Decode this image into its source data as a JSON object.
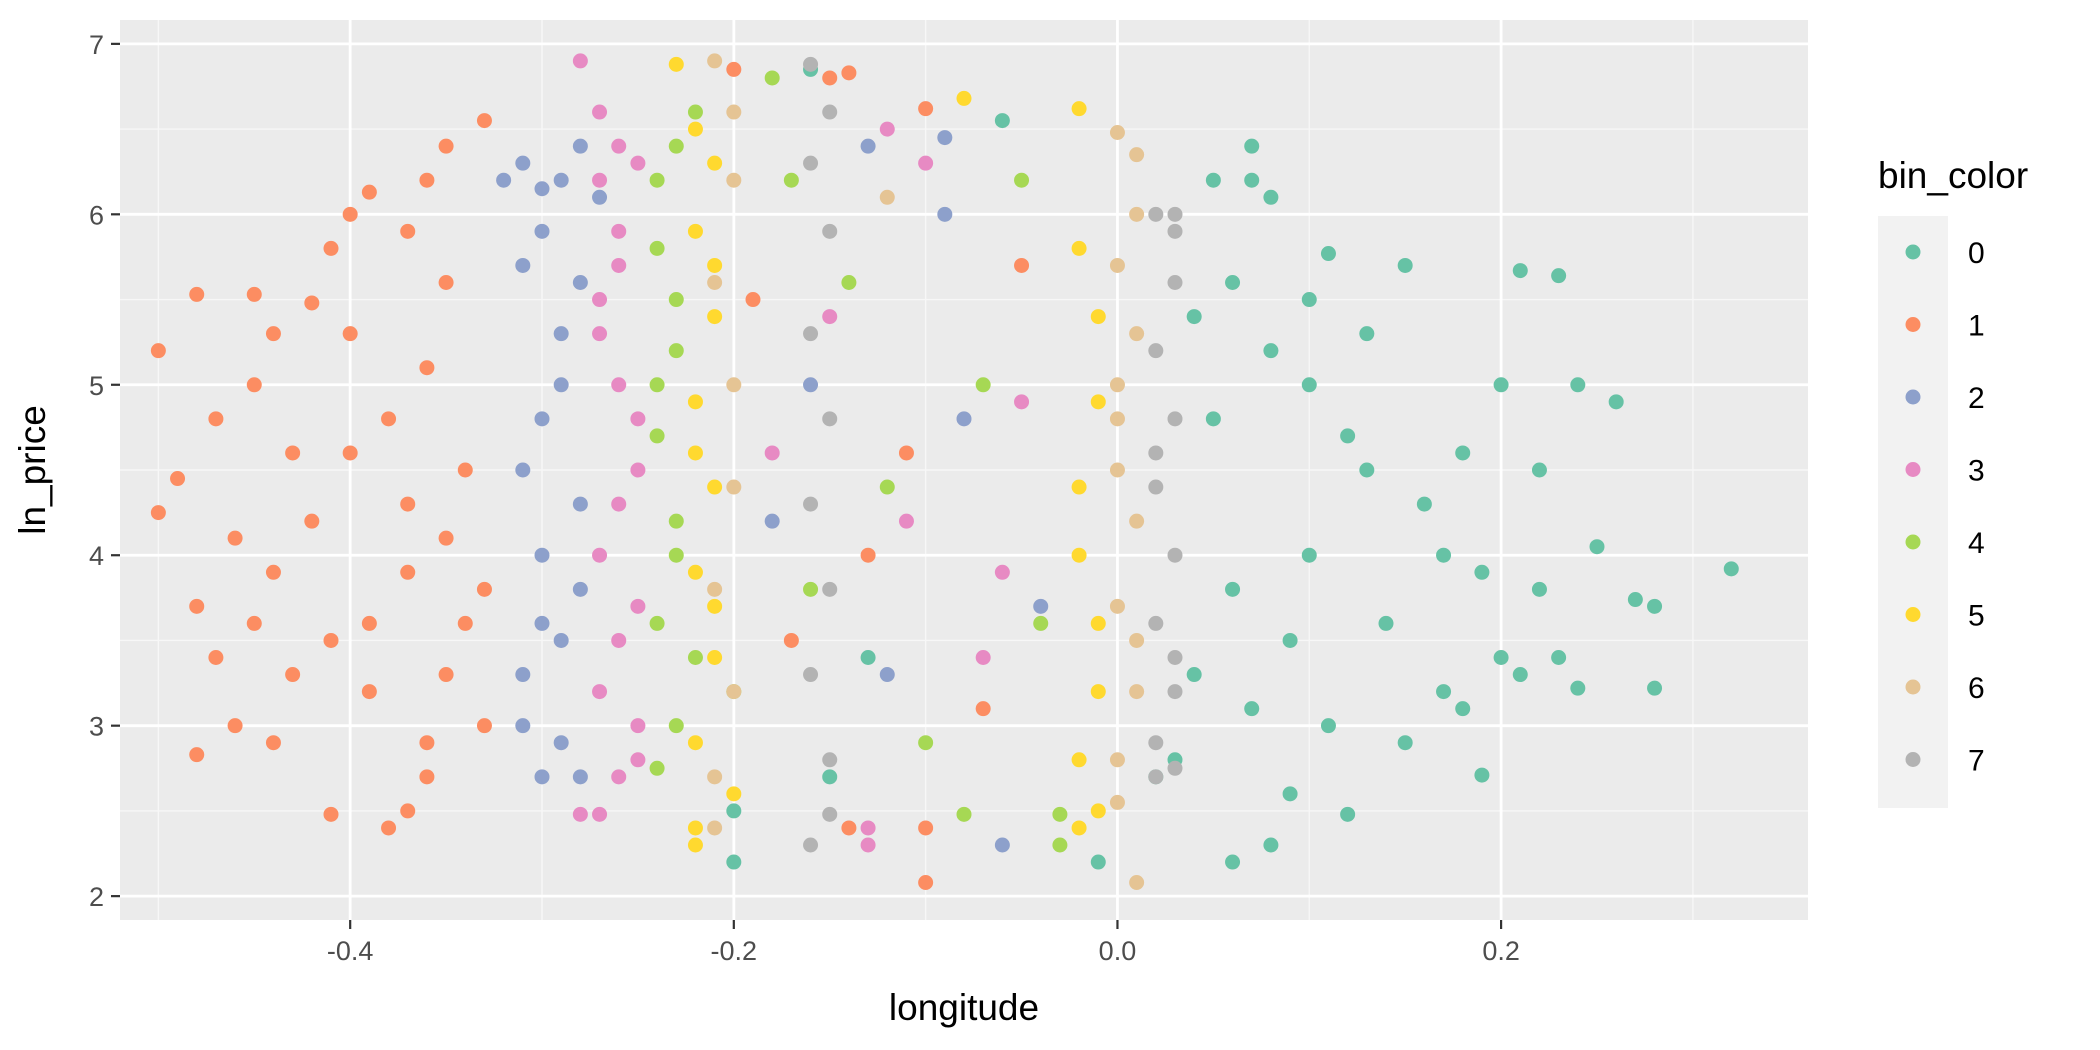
{
  "chart_data": {
    "type": "scatter",
    "xlabel": "longitude",
    "ylabel": "ln_price",
    "xlim": [
      -0.52,
      0.36
    ],
    "ylim": [
      1.86,
      7.14
    ],
    "x_ticks": [
      -0.4,
      -0.2,
      0.0,
      0.2
    ],
    "x_tick_labels": [
      "-0.4",
      "-0.2",
      "0.0",
      "0.2"
    ],
    "y_ticks": [
      2,
      3,
      4,
      5,
      6,
      7
    ],
    "y_tick_labels": [
      "2",
      "3",
      "4",
      "5",
      "6",
      "7"
    ],
    "grid": true,
    "legend": {
      "title": "bin_color",
      "position": "right",
      "entries": [
        {
          "label": "0",
          "color": "#66C2A5"
        },
        {
          "label": "1",
          "color": "#FC8D62"
        },
        {
          "label": "2",
          "color": "#8DA0CB"
        },
        {
          "label": "3",
          "color": "#E78AC3"
        },
        {
          "label": "4",
          "color": "#A6D854"
        },
        {
          "label": "5",
          "color": "#FFD92F"
        },
        {
          "label": "6",
          "color": "#E5C494"
        },
        {
          "label": "7",
          "color": "#B3B3B3"
        }
      ]
    },
    "series": [
      {
        "name": "0",
        "color": "#66C2A5",
        "points": [
          [
            0.05,
            6.2
          ],
          [
            0.07,
            6.4
          ],
          [
            0.07,
            6.2
          ],
          [
            0.08,
            6.1
          ],
          [
            0.11,
            5.77
          ],
          [
            0.15,
            5.7
          ],
          [
            0.21,
            5.67
          ],
          [
            0.23,
            5.64
          ],
          [
            0.26,
            4.9
          ],
          [
            0.24,
            5.0
          ],
          [
            0.25,
            4.05
          ],
          [
            0.32,
            3.92
          ],
          [
            0.27,
            3.74
          ],
          [
            0.28,
            3.7
          ],
          [
            0.28,
            3.22
          ],
          [
            0.24,
            3.22
          ],
          [
            0.19,
            2.71
          ],
          [
            0.12,
            2.48
          ],
          [
            0.08,
            2.3
          ],
          [
            0.06,
            2.2
          ],
          [
            0.17,
            3.2
          ],
          [
            0.2,
            3.4
          ],
          [
            0.22,
            3.8
          ],
          [
            0.18,
            4.6
          ],
          [
            0.16,
            4.3
          ],
          [
            0.13,
            4.5
          ],
          [
            0.1,
            4.0
          ],
          [
            0.09,
            3.5
          ],
          [
            0.14,
            3.6
          ],
          [
            0.19,
            3.9
          ],
          [
            0.21,
            3.3
          ],
          [
            0.23,
            3.4
          ],
          [
            0.15,
            2.9
          ],
          [
            0.11,
            3.0
          ],
          [
            0.06,
            3.8
          ],
          [
            0.05,
            4.8
          ],
          [
            0.08,
            5.2
          ],
          [
            0.1,
            5.0
          ],
          [
            0.12,
            4.7
          ],
          [
            0.2,
            5.0
          ],
          [
            0.22,
            4.5
          ],
          [
            0.17,
            4.0
          ],
          [
            0.04,
            3.3
          ],
          [
            0.07,
            3.1
          ],
          [
            0.09,
            2.6
          ],
          [
            0.1,
            5.5
          ],
          [
            0.13,
            5.3
          ],
          [
            0.06,
            5.6
          ],
          [
            0.04,
            5.4
          ],
          [
            0.18,
            3.1
          ],
          [
            0.02,
            2.7
          ],
          [
            0.03,
            2.8
          ],
          [
            -0.01,
            2.2
          ],
          [
            -0.2,
            2.5
          ],
          [
            -0.2,
            2.2
          ],
          [
            -0.15,
            2.7
          ],
          [
            -0.06,
            6.55
          ],
          [
            -0.16,
            6.85
          ],
          [
            -0.13,
            3.4
          ]
        ]
      },
      {
        "name": "1",
        "color": "#FC8D62",
        "points": [
          [
            -0.5,
            5.2
          ],
          [
            -0.48,
            5.53
          ],
          [
            -0.45,
            5.53
          ],
          [
            -0.42,
            5.48
          ],
          [
            -0.44,
            5.3
          ],
          [
            -0.4,
            5.3
          ],
          [
            -0.41,
            5.8
          ],
          [
            -0.4,
            6.0
          ],
          [
            -0.39,
            6.13
          ],
          [
            -0.37,
            5.9
          ],
          [
            -0.36,
            6.2
          ],
          [
            -0.35,
            6.4
          ],
          [
            -0.33,
            6.55
          ],
          [
            -0.49,
            4.45
          ],
          [
            -0.5,
            4.25
          ],
          [
            -0.48,
            3.7
          ],
          [
            -0.47,
            3.4
          ],
          [
            -0.46,
            3.0
          ],
          [
            -0.48,
            2.83
          ],
          [
            -0.44,
            2.9
          ],
          [
            -0.41,
            2.48
          ],
          [
            -0.38,
            2.4
          ],
          [
            -0.37,
            2.5
          ],
          [
            -0.36,
            2.7
          ],
          [
            -0.47,
            4.8
          ],
          [
            -0.45,
            5.0
          ],
          [
            -0.43,
            4.6
          ],
          [
            -0.42,
            4.2
          ],
          [
            -0.44,
            3.9
          ],
          [
            -0.46,
            4.1
          ],
          [
            -0.41,
            3.5
          ],
          [
            -0.39,
            3.2
          ],
          [
            -0.38,
            4.8
          ],
          [
            -0.36,
            5.1
          ],
          [
            -0.35,
            5.6
          ],
          [
            -0.34,
            4.5
          ],
          [
            -0.33,
            3.8
          ],
          [
            -0.35,
            3.3
          ],
          [
            -0.33,
            3.0
          ],
          [
            -0.37,
            4.3
          ],
          [
            -0.4,
            4.6
          ],
          [
            -0.45,
            3.6
          ],
          [
            -0.43,
            3.3
          ],
          [
            -0.39,
            3.6
          ],
          [
            -0.37,
            3.9
          ],
          [
            -0.35,
            4.1
          ],
          [
            -0.34,
            3.6
          ],
          [
            -0.36,
            2.9
          ],
          [
            -0.2,
            6.85
          ],
          [
            -0.15,
            6.8
          ],
          [
            -0.14,
            6.83
          ],
          [
            -0.1,
            6.62
          ],
          [
            -0.1,
            2.08
          ],
          [
            -0.1,
            2.4
          ],
          [
            -0.14,
            2.4
          ],
          [
            -0.17,
            3.5
          ],
          [
            -0.13,
            4.0
          ],
          [
            -0.19,
            5.5
          ],
          [
            -0.11,
            4.6
          ],
          [
            -0.07,
            3.1
          ],
          [
            -0.05,
            5.7
          ]
        ]
      },
      {
        "name": "2",
        "color": "#8DA0CB",
        "points": [
          [
            -0.32,
            6.2
          ],
          [
            -0.31,
            6.3
          ],
          [
            -0.3,
            6.15
          ],
          [
            -0.29,
            6.2
          ],
          [
            -0.28,
            6.4
          ],
          [
            -0.27,
            6.1
          ],
          [
            -0.3,
            5.9
          ],
          [
            -0.28,
            5.6
          ],
          [
            -0.29,
            5.0
          ],
          [
            -0.31,
            4.5
          ],
          [
            -0.3,
            4.0
          ],
          [
            -0.29,
            3.5
          ],
          [
            -0.31,
            3.0
          ],
          [
            -0.3,
            2.7
          ],
          [
            -0.28,
            2.7
          ],
          [
            -0.31,
            3.3
          ],
          [
            -0.28,
            3.8
          ],
          [
            -0.3,
            4.8
          ],
          [
            -0.29,
            5.3
          ],
          [
            -0.31,
            5.7
          ],
          [
            -0.28,
            4.3
          ],
          [
            -0.3,
            3.6
          ],
          [
            -0.29,
            2.9
          ],
          [
            -0.06,
            2.3
          ],
          [
            -0.13,
            6.4
          ],
          [
            -0.09,
            6.45
          ],
          [
            -0.16,
            5.0
          ],
          [
            -0.12,
            3.3
          ],
          [
            -0.18,
            4.2
          ],
          [
            -0.08,
            4.8
          ],
          [
            -0.04,
            3.7
          ],
          [
            -0.09,
            6.0
          ]
        ]
      },
      {
        "name": "3",
        "color": "#E78AC3",
        "points": [
          [
            -0.28,
            6.9
          ],
          [
            -0.27,
            6.6
          ],
          [
            -0.26,
            6.4
          ],
          [
            -0.27,
            6.2
          ],
          [
            -0.26,
            5.9
          ],
          [
            -0.25,
            6.3
          ],
          [
            -0.27,
            5.5
          ],
          [
            -0.26,
            5.0
          ],
          [
            -0.25,
            4.5
          ],
          [
            -0.27,
            4.0
          ],
          [
            -0.26,
            3.5
          ],
          [
            -0.25,
            3.0
          ],
          [
            -0.27,
            2.48
          ],
          [
            -0.28,
            2.48
          ],
          [
            -0.25,
            2.8
          ],
          [
            -0.27,
            3.2
          ],
          [
            -0.26,
            4.3
          ],
          [
            -0.25,
            4.8
          ],
          [
            -0.27,
            5.3
          ],
          [
            -0.26,
            5.7
          ],
          [
            -0.25,
            3.7
          ],
          [
            -0.26,
            2.7
          ],
          [
            -0.13,
            2.4
          ],
          [
            -0.13,
            2.3
          ],
          [
            -0.12,
            6.5
          ],
          [
            -0.1,
            6.3
          ],
          [
            -0.15,
            5.4
          ],
          [
            -0.07,
            3.4
          ],
          [
            -0.05,
            4.9
          ],
          [
            -0.06,
            3.9
          ],
          [
            -0.18,
            4.6
          ],
          [
            -0.11,
            4.2
          ]
        ]
      },
      {
        "name": "4",
        "color": "#A6D854",
        "points": [
          [
            -0.23,
            6.4
          ],
          [
            -0.24,
            6.2
          ],
          [
            -0.22,
            6.6
          ],
          [
            -0.24,
            5.8
          ],
          [
            -0.23,
            5.2
          ],
          [
            -0.24,
            4.7
          ],
          [
            -0.23,
            4.2
          ],
          [
            -0.24,
            3.6
          ],
          [
            -0.23,
            3.0
          ],
          [
            -0.24,
            2.75
          ],
          [
            -0.22,
            3.4
          ],
          [
            -0.23,
            4.0
          ],
          [
            -0.24,
            5.0
          ],
          [
            -0.23,
            5.5
          ],
          [
            -0.17,
            6.2
          ],
          [
            -0.18,
            6.8
          ],
          [
            -0.08,
            2.48
          ],
          [
            -0.03,
            2.48
          ],
          [
            -0.03,
            2.3
          ],
          [
            -0.05,
            6.2
          ],
          [
            -0.16,
            3.8
          ],
          [
            -0.12,
            4.4
          ],
          [
            -0.07,
            5.0
          ],
          [
            -0.04,
            3.6
          ],
          [
            -0.2,
            3.2
          ],
          [
            -0.14,
            5.6
          ],
          [
            -0.1,
            2.9
          ]
        ]
      },
      {
        "name": "5",
        "color": "#FFD92F",
        "points": [
          [
            -0.23,
            6.88
          ],
          [
            -0.22,
            6.5
          ],
          [
            -0.21,
            6.3
          ],
          [
            -0.22,
            5.9
          ],
          [
            -0.21,
            5.4
          ],
          [
            -0.22,
            4.9
          ],
          [
            -0.21,
            4.4
          ],
          [
            -0.22,
            3.9
          ],
          [
            -0.21,
            3.4
          ],
          [
            -0.22,
            2.9
          ],
          [
            -0.22,
            2.4
          ],
          [
            -0.22,
            2.3
          ],
          [
            -0.2,
            2.6
          ],
          [
            -0.21,
            3.7
          ],
          [
            -0.22,
            4.6
          ],
          [
            -0.21,
            5.7
          ],
          [
            -0.02,
            6.62
          ],
          [
            -0.02,
            2.4
          ],
          [
            -0.01,
            2.5
          ],
          [
            -0.08,
            6.68
          ],
          [
            -0.02,
            5.8
          ],
          [
            -0.01,
            4.9
          ],
          [
            -0.02,
            4.0
          ],
          [
            -0.01,
            3.2
          ],
          [
            -0.02,
            2.8
          ],
          [
            -0.01,
            5.4
          ],
          [
            -0.02,
            4.4
          ],
          [
            -0.01,
            3.6
          ]
        ]
      },
      {
        "name": "6",
        "color": "#E5C494",
        "points": [
          [
            -0.21,
            6.9
          ],
          [
            -0.2,
            6.6
          ],
          [
            -0.2,
            6.2
          ],
          [
            -0.21,
            5.6
          ],
          [
            -0.2,
            5.0
          ],
          [
            -0.2,
            4.4
          ],
          [
            -0.21,
            3.8
          ],
          [
            -0.2,
            3.2
          ],
          [
            -0.21,
            2.7
          ],
          [
            -0.21,
            2.4
          ],
          [
            0.0,
            6.48
          ],
          [
            0.01,
            6.35
          ],
          [
            0.01,
            6.0
          ],
          [
            0.0,
            5.7
          ],
          [
            0.01,
            5.3
          ],
          [
            0.0,
            4.8
          ],
          [
            0.01,
            4.2
          ],
          [
            0.0,
            3.7
          ],
          [
            0.01,
            3.2
          ],
          [
            0.0,
            2.8
          ],
          [
            0.0,
            2.55
          ],
          [
            0.01,
            2.08
          ],
          [
            0.0,
            4.5
          ],
          [
            0.01,
            3.5
          ],
          [
            0.0,
            5.0
          ],
          [
            -0.12,
            6.1
          ]
        ]
      },
      {
        "name": "7",
        "color": "#B3B3B3",
        "points": [
          [
            -0.16,
            6.88
          ],
          [
            -0.15,
            6.6
          ],
          [
            -0.16,
            6.3
          ],
          [
            -0.15,
            5.9
          ],
          [
            -0.16,
            5.3
          ],
          [
            -0.15,
            4.8
          ],
          [
            -0.16,
            4.3
          ],
          [
            -0.15,
            3.8
          ],
          [
            -0.16,
            3.3
          ],
          [
            -0.15,
            2.8
          ],
          [
            -0.16,
            2.3
          ],
          [
            -0.15,
            2.48
          ],
          [
            0.02,
            6.0
          ],
          [
            0.03,
            6.0
          ],
          [
            0.03,
            5.6
          ],
          [
            0.02,
            5.2
          ],
          [
            0.03,
            4.8
          ],
          [
            0.02,
            4.4
          ],
          [
            0.03,
            4.0
          ],
          [
            0.02,
            3.6
          ],
          [
            0.03,
            3.2
          ],
          [
            0.02,
            2.9
          ],
          [
            0.03,
            2.75
          ],
          [
            0.02,
            2.7
          ],
          [
            0.03,
            5.9
          ],
          [
            0.02,
            4.6
          ],
          [
            0.03,
            3.4
          ]
        ]
      }
    ]
  }
}
